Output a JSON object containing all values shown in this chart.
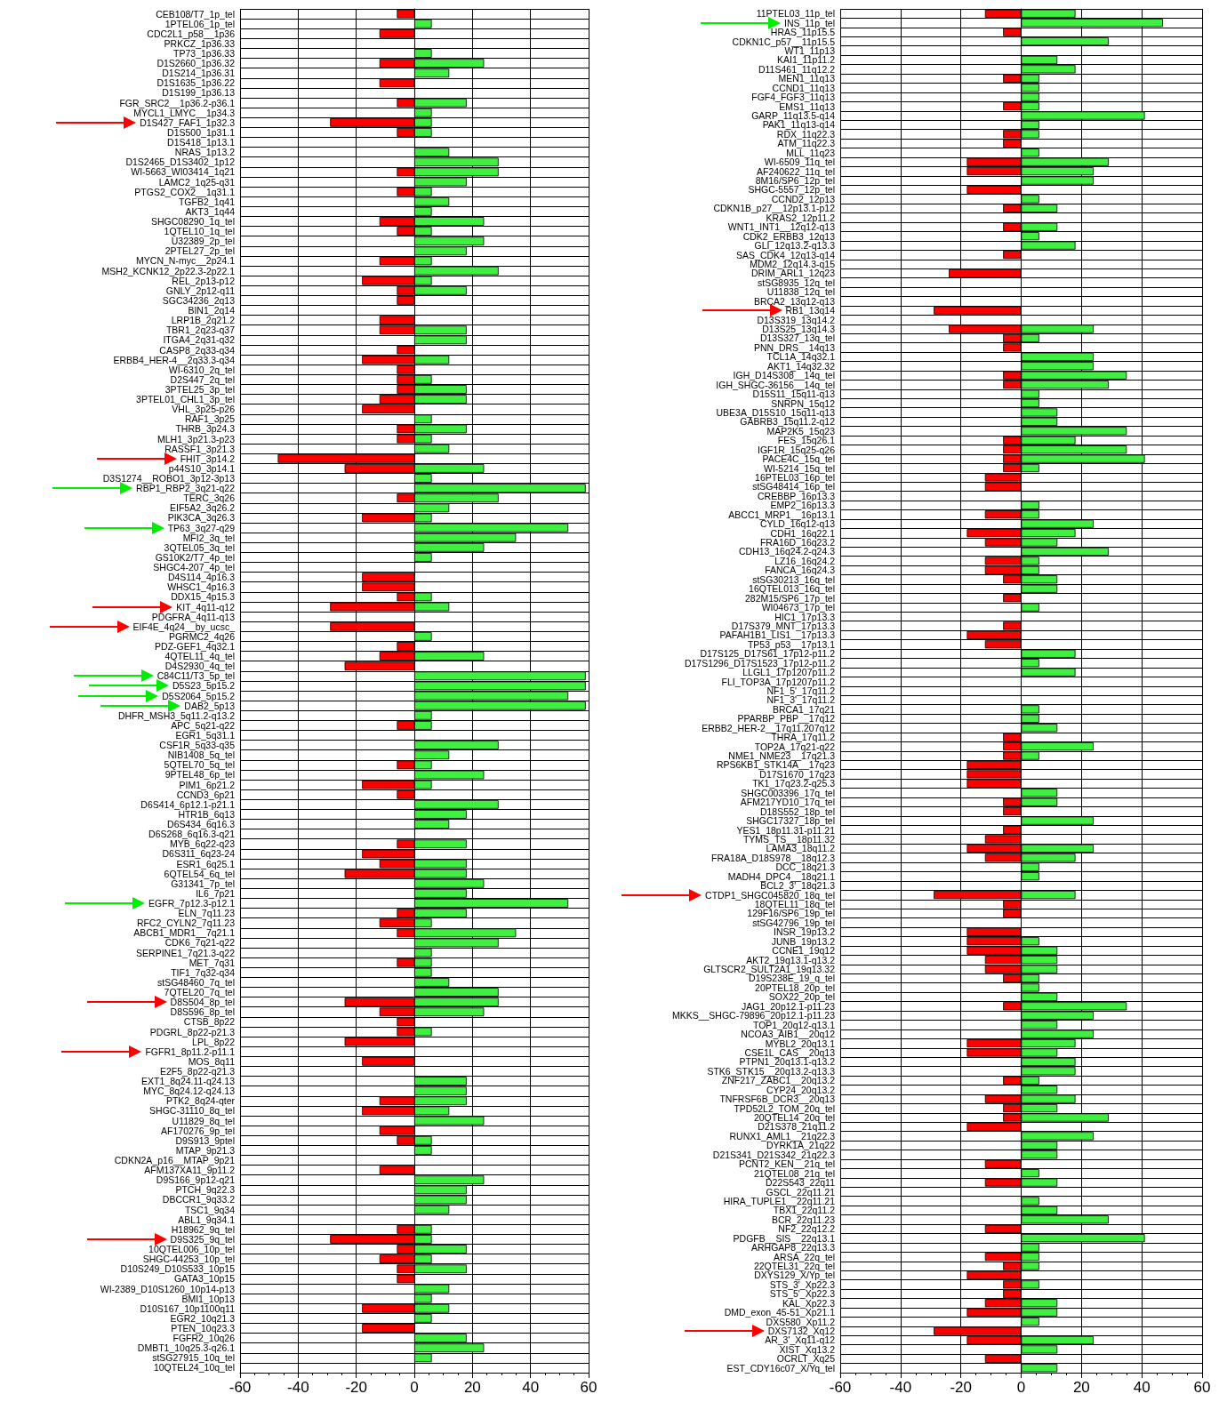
{
  "chart_data": [
    {
      "type": "bar",
      "orientation": "horizontal",
      "grid": true,
      "xlim": [
        -60,
        60
      ],
      "xticks": [
        -60,
        -40,
        -20,
        0,
        20,
        40,
        60
      ],
      "categories": [
        "CEB108/T7_1p_tel",
        "1PTEL06_1p_tel",
        "CDC2L1_p58__1p36",
        "PRKCZ_1p36.33",
        "TP73_1p36.33",
        "D1S2660_1p36.32",
        "D1S214_1p36.31",
        "D1S1635_1p36.22",
        "D1S199_1p36.13",
        "FGR_SRC2__1p36.2-p36.1",
        "MYCL1_LMYC__1p34.3",
        "D1S427_FAF1_1p32.3",
        "D1S500_1p31.1",
        "D1S418_1p13.1",
        "NRAS_1p13.2",
        "D1S2465_D1S3402_1p12",
        "WI-5663_WI03414_1q21",
        "LAMC2_1q25-q31",
        "PTGS2_COX2__1q31.1",
        "TGFB2_1q41",
        "AKT3_1q44",
        "SHGC08290_1q_tel",
        "1QTEL10_1q_tel",
        "U32389_2p_tel",
        "2PTEL27_2p_tel",
        "MYCN_N-myc__2p24.1",
        "MSH2_KCNK12_2p22.3-2p22.1",
        "REL_2p13-p12",
        "GNLY_2p12-q11",
        "SGC34236_2q13",
        "BIN1_2q14",
        "LRP1B_2q21.2",
        "TBR1_2q23-q37",
        "ITGA4_2q31-q32",
        "CASP8_2q33-q34",
        "ERBB4_HER-4__2q33.3-q34",
        "WI-6310_2q_tel",
        "D2S447_2q_tel",
        "3PTEL25_3p_tel",
        "3PTEL01_CHL1_3p_tel",
        "VHL_3p25-p26",
        "RAF1_3p25",
        "THRB_3p24.3",
        "MLH1_3p21.3-p23",
        "RASSF1_3p21.3",
        "FHIT_3p14.2",
        "p44S10_3p14.1",
        "D3S1274__ROBO1_3p12-3p13",
        "RBP1_RBP2_3q21-q22",
        "TERC_3q26",
        "EIF5A2_3q26.2",
        "PIK3CA_3q26.3",
        "TP63_3q27-q29",
        "MFI2_3q_tel",
        "3QTEL05_3q_tel",
        "GS10K2/T7_4p_tel",
        "SHGC4-207_4p_tel",
        "D4S114_4p16.3",
        "WHSC1_4p16.3",
        "DDX15_4p15.3",
        "KIT_4q11-q12",
        "PDGFRA_4q11-q13",
        "EIF4E_4q24__by_ucsc_",
        "PGRMC2_4q26",
        "PDZ-GEF1_4q32.1",
        "4QTEL11_4q_tel",
        "D4S2930_4q_tel",
        "C84C11/T3_5p_tel",
        "D5S23_5p15.2",
        "D5S2064_5p15.2",
        "DAB2_5p13",
        "DHFR_MSH3_5q11.2-q13.2",
        "APC_5q21-q22",
        "EGR1_5q31.1",
        "CSF1R_5q33-q35",
        "NIB1408_5q_tel",
        "5QTEL70_5q_tel",
        "9PTEL48_6p_tel",
        "PIM1_6p21.2",
        "CCND3_6p21",
        "D6S414_6p12.1-p21.1",
        "HTR1B_6q13",
        "D6S434_6q16.3",
        "D6S268_6q16.3-q21",
        "MYB_6q22-q23",
        "D6S311_6q23-24",
        "ESR1_6q25.1",
        "6QTEL54_6q_tel",
        "G31341_7p_tel",
        "IL6_7p21",
        "EGFR_7p12.3-p12.1",
        "ELN_7q11.23",
        "RFC2_CYLN2_7q11.23",
        "ABCB1_MDR1__7q21.1",
        "CDK6_7q21-q22",
        "SERPINE1_7q21.3-q22",
        "MET_7q31",
        "TIF1_7q32-q34",
        "stSG48460_7q_tel",
        "7QTEL20_7q_tel",
        "D8S504_8p_tel",
        "D8S596_8p_tel",
        "CTSB_8p22",
        "PDGRL_8p22-p21.3",
        "LPL_8p22",
        "FGFR1_8p11.2-p11.1",
        "MOS_8q11",
        "E2F5_8p22-q21.3",
        "EXT1_8q24.11-q24.13",
        "MYC_8q24.12-q24.13",
        "PTK2_8q24-qter",
        "SHGC-31110_8q_tel",
        "U11829_8q_tel",
        "AF170276_9p_tel",
        "D9S913_9ptel",
        "MTAP_9p21.3",
        "CDKN2A_p16__MTAP_9p21",
        "AFM137XA11_9p11.2",
        "D9S166_9p12-q21",
        "PTCH_9q22.3",
        "DBCCR1_9q33.2",
        "TSC1_9q34",
        "ABL1_9q34.1",
        "H18962_9q_tel",
        "D9S325_9q_tel",
        "10QTEL006_10p_tel",
        "SHGC-44253_10p_tel",
        "D10S249_D10S533_10p15",
        "GATA3_10p15",
        "WI-2389_D10S1260_10p14-p13",
        "BMI1_10p13",
        "D10S167_10p1100q11",
        "EGR2_10q21.3",
        "PTEN_10q23.3",
        "FGFR2_10q26",
        "DMBT1_10q25.3-q26.1",
        "stSG27915_10q_tel",
        "10QTEL24_10q_tel"
      ],
      "series": [
        {
          "color": "#ff0000",
          "values": [
            -6,
            null,
            -12,
            null,
            null,
            -12,
            null,
            -12,
            null,
            -6,
            null,
            -29,
            -6,
            null,
            null,
            null,
            -6,
            null,
            -6,
            null,
            null,
            -12,
            -6,
            null,
            null,
            -12,
            null,
            -18,
            -6,
            -6,
            null,
            -12,
            -12,
            null,
            -6,
            -18,
            -6,
            -6,
            -6,
            -12,
            -18,
            null,
            -6,
            -6,
            null,
            -47,
            -24,
            null,
            null,
            -6,
            null,
            -18,
            null,
            null,
            null,
            null,
            null,
            -18,
            -18,
            -6,
            -29,
            null,
            -29,
            null,
            -6,
            -12,
            -24,
            null,
            null,
            null,
            null,
            null,
            -6,
            null,
            null,
            null,
            -6,
            null,
            -18,
            -6,
            null,
            null,
            null,
            null,
            -6,
            -18,
            -12,
            -24,
            null,
            null,
            null,
            -6,
            -12,
            -6,
            null,
            null,
            -6,
            null,
            null,
            null,
            -24,
            -12,
            -6,
            -6,
            -24,
            null,
            -18,
            null,
            null,
            null,
            -12,
            -18,
            null,
            -12,
            -6,
            null,
            null,
            -12,
            null,
            null,
            null,
            null,
            null,
            -6,
            -29,
            -6,
            -12,
            -6,
            -6,
            null,
            null,
            -18,
            null,
            -18,
            null,
            null,
            null,
            null
          ]
        },
        {
          "color": "#40f040",
          "values": [
            null,
            6,
            null,
            null,
            6,
            24,
            12,
            null,
            null,
            18,
            6,
            6,
            6,
            null,
            12,
            29,
            29,
            18,
            6,
            12,
            6,
            24,
            6,
            24,
            18,
            6,
            29,
            6,
            18,
            null,
            null,
            null,
            18,
            18,
            null,
            12,
            null,
            6,
            18,
            18,
            null,
            6,
            18,
            6,
            12,
            null,
            24,
            6,
            59,
            29,
            12,
            6,
            53,
            35,
            24,
            6,
            null,
            null,
            null,
            6,
            12,
            null,
            null,
            6,
            null,
            24,
            null,
            59,
            59,
            53,
            59,
            6,
            6,
            null,
            29,
            12,
            6,
            24,
            6,
            null,
            29,
            18,
            12,
            null,
            18,
            null,
            18,
            18,
            24,
            18,
            53,
            18,
            6,
            35,
            29,
            6,
            6,
            6,
            12,
            29,
            29,
            24,
            null,
            6,
            null,
            null,
            null,
            null,
            18,
            18,
            18,
            12,
            24,
            null,
            6,
            6,
            null,
            null,
            24,
            18,
            18,
            12,
            null,
            6,
            6,
            18,
            6,
            18,
            null,
            12,
            6,
            12,
            6,
            null,
            18,
            24,
            6,
            null
          ]
        }
      ]
    },
    {
      "type": "bar",
      "orientation": "horizontal",
      "grid": true,
      "xlim": [
        -60,
        60
      ],
      "xticks": [
        -60,
        -40,
        -20,
        0,
        20,
        40,
        60
      ],
      "categories": [
        "11PTEL03_11p_tel",
        "INS_11p_tel",
        "HRAS_11p15.5",
        "CDKN1C_p57__11p15.5",
        "WT1_11p13",
        "KAI1_11p11.2",
        "D11S461_11q12.2",
        "MEN1_11q13",
        "CCND1_11q13",
        "FGF4_FGF3_11q13",
        "EMS1_11q13",
        "GARP_11q13.5-q14",
        "PAK1_11q13-q14",
        "RDX_11q22.3",
        "ATM_11q22.3",
        "MLL_11q23",
        "WI-6509_11q_tel",
        "AF240622_11q_tel",
        "8M16/SP6_12p_tel",
        "SHGC-5557_12p_tel",
        "CCND2_12p13",
        "CDKN1B_p27__12p13.1-p12",
        "KRAS2_12p11.2",
        "WNT1_INT1__12q12-q13",
        "CDK2_ERBB3_12q13",
        "GLI_12q13.2-q13.3",
        "SAS_CDK4_12q13-q14",
        "MDM2_12q14.3-q15",
        "DRIM_ARL1_12q23",
        "stSG8935_12q_tel",
        "U11838_12q_tel",
        "BRCA2_13q12-q13",
        "RB1_13q14",
        "D13S319_13q14.2",
        "D13S25_13q14.3",
        "D13S327_13q_tel",
        "PNN_DRS__14q13",
        "TCL1A_14q32.1",
        "AKT1_14q32.32",
        "IGH_D14S308__14q_tel",
        "IGH_SHGC-36156__14q_tel",
        "D15S11_15q11-q13",
        "SNRPN_15q12",
        "UBE3A_D15S10_15q11-q13",
        "GABRB3_15q11.2-q12",
        "MAP2K5_15q23",
        "FES_15q26.1",
        "IGF1R_15q25-q26",
        "PACE4C_15q_tel",
        "WI-5214_15q_tel",
        "16PTEL03_16p_tel",
        "stSG48414_16p_tel",
        "CREBBP_16p13.3",
        "EMP2_16p13.3",
        "ABCC1_MRP1__16p13.1",
        "CYLD_16q12-q13",
        "CDH1_16q22.1",
        "FRA16D_16q23.2",
        "CDH13_16q24.2-q24.3",
        "LZ16_16q24.2",
        "FANCA_16q24.3",
        "stSG30213_16q_tel",
        "16QTEL013_16q_tel",
        "282M15/SP6_17p_tel",
        "WI04673_17p_tel",
        "HIC1_17p13.3",
        "D17S379_MNT_17p13.3",
        "PAFAH1B1_LIS1__17p13.3",
        "TP53_p53__17p13.1",
        "D17S125_D17S61_17p12-p11.2",
        "D17S1296_D17S1523_17p12-p11.2",
        "LLGL1_17p1207p11.2",
        "FLI_TOP3A_17p1207p11.2",
        "NF1_5'_17q11.2",
        "NF1_3'_17q11.2",
        "BRCA1_17q21",
        "PPARBP_PBP__17q12",
        "ERBB2_HER-2__17q11.207q12",
        "THRA_17q11.2",
        "TOP2A_17q21-q22",
        "NME1_NME23__17q21.3",
        "RPS6KB1_STK14A__17q23",
        "D17S1670_17q23",
        "TK1_17q23.2-q25.3",
        "SHGC003396_17q_tel",
        "AFM217YD10_17q_tel",
        "D18S552_18p_tel",
        "SHGC17327_18p_tel",
        "YES1_18p11.31-p11.21",
        "TYMS_TS__18p11.32",
        "LAMA3_18q11.2",
        "FRA18A_D18S978__18q12.3",
        "DCC_18q21.3",
        "MADH4_DPC4__18q21.1",
        "BCL2_3'_18q21.3",
        "CTDP1_SHGC045820_18q_tel",
        "18QTEL11_18q_tel",
        "129F16/SP6_19p_tel",
        "stSG42796_19p_tel",
        "INSR_19p13.2",
        "JUNB_19p13.2",
        "CCNE1_19q12",
        "AKT2_19q13.1-q13.2",
        "GLTSCR2_SULT2A1_19q13.32",
        "D19S238E_19_q_tel",
        "20PTEL18_20p_tel",
        "SOX22_20p_tel",
        "JAG1_20p12.1-p11.23",
        "MKKS__SHGC-79896_20p12.1-p11.23",
        "TOP1_20q12-q13.1",
        "NCOA3_AIB1__20q12",
        "MYBL2_20q13.1",
        "CSE1L_CAS__20q13",
        "PTPN1_20q13.1-q13.2",
        "STK6_STK15__20q13.2-q13.3",
        "ZNF217_ZABC1__20q13.2",
        "CYP24_20q13.2",
        "TNFRSF6B_DCR3__20q13",
        "TPD52L2_TOM_20q_tel",
        "20QTEL14_20q_tel",
        "D21S378_21q11.2",
        "RUNX1_AML1__21q22.3",
        "DYRK1A_21q22",
        "D21S341_D21S342_21q22.3",
        "PCNT2_KEN__21q_tel",
        "21QTEL08_21q_tel",
        "D22S543_22q11",
        "GSCL_22q11.21",
        "HIRA_TUPLE1__22q11.21",
        "TBX1_22q11.2",
        "BCR_22q11.23",
        "NF2_22q12.2",
        "PDGFB__SIS__22q13.1",
        "ARHGAP8_22q13.3",
        "ARSA_22q_tel",
        "22QTEL31_22q_tel",
        "DXYS129_X/Yp_tel",
        "STS_3'_Xp22.3",
        "STS_5'_Xp22.3",
        "KAL_Xp22.3",
        "DMD_exon_45-51_Xp21.1",
        "DXS580_Xp11.2",
        "DXS7132_Xq12",
        "AR_3'_Xq11-q12",
        "XIST_Xq13.2",
        "OCRLT_Xq25",
        "EST_CDY16c07_X/Yq_tel"
      ],
      "series": [
        {
          "color": "#ff0000",
          "values": [
            -12,
            null,
            -6,
            null,
            null,
            null,
            null,
            -6,
            null,
            null,
            -6,
            null,
            null,
            -6,
            -6,
            null,
            -18,
            -18,
            null,
            -18,
            null,
            -6,
            null,
            -6,
            null,
            null,
            -6,
            null,
            -24,
            null,
            null,
            null,
            -29,
            null,
            -24,
            -6,
            -6,
            null,
            null,
            -6,
            -6,
            null,
            null,
            null,
            null,
            null,
            -6,
            -6,
            -6,
            -6,
            -12,
            -12,
            null,
            null,
            -12,
            null,
            -18,
            -12,
            null,
            -12,
            -12,
            -6,
            null,
            -6,
            null,
            null,
            -6,
            -18,
            -12,
            null,
            null,
            null,
            null,
            null,
            null,
            null,
            null,
            null,
            -6,
            -6,
            -6,
            -18,
            -18,
            -18,
            null,
            -6,
            -6,
            null,
            -6,
            -12,
            -18,
            -12,
            null,
            null,
            null,
            -29,
            -6,
            -6,
            null,
            -18,
            -18,
            -18,
            -12,
            -12,
            -6,
            null,
            null,
            -6,
            null,
            null,
            null,
            -18,
            -18,
            null,
            null,
            -6,
            null,
            -12,
            -6,
            -6,
            -18,
            null,
            null,
            null,
            -12,
            null,
            -12,
            null,
            null,
            null,
            null,
            -12,
            null,
            null,
            -12,
            -6,
            -18,
            -6,
            -6,
            -12,
            -18,
            null,
            -29,
            -18,
            null,
            -12,
            null
          ]
        },
        {
          "color": "#40f040",
          "values": [
            18,
            47,
            null,
            29,
            null,
            12,
            18,
            6,
            6,
            6,
            6,
            41,
            6,
            6,
            null,
            6,
            29,
            24,
            24,
            null,
            6,
            12,
            null,
            12,
            6,
            18,
            null,
            null,
            null,
            null,
            null,
            null,
            null,
            null,
            24,
            6,
            null,
            24,
            24,
            35,
            29,
            6,
            6,
            12,
            12,
            35,
            18,
            35,
            41,
            6,
            null,
            null,
            null,
            6,
            6,
            24,
            18,
            12,
            29,
            6,
            6,
            12,
            12,
            null,
            6,
            null,
            null,
            null,
            null,
            18,
            6,
            18,
            null,
            null,
            null,
            6,
            6,
            12,
            null,
            24,
            6,
            null,
            null,
            null,
            12,
            12,
            null,
            24,
            null,
            null,
            24,
            18,
            6,
            6,
            null,
            18,
            null,
            null,
            null,
            null,
            6,
            12,
            12,
            12,
            6,
            6,
            12,
            35,
            24,
            12,
            24,
            18,
            12,
            18,
            18,
            6,
            12,
            18,
            12,
            29,
            null,
            24,
            12,
            12,
            null,
            6,
            12,
            null,
            6,
            12,
            29,
            null,
            41,
            6,
            6,
            6,
            null,
            6,
            null,
            12,
            12,
            6,
            null,
            24,
            12,
            null,
            12
          ]
        }
      ]
    }
  ]
}
